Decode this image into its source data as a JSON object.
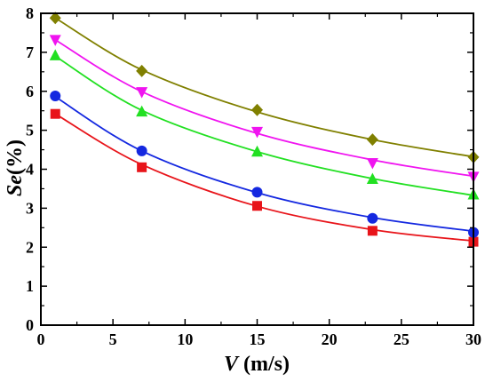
{
  "chart_data": {
    "type": "scatter",
    "title": "",
    "xlabel": {
      "var": "V",
      "unit": " (m/s)"
    },
    "ylabel": {
      "var": "Se",
      "unit": "(%)"
    },
    "xlim": [
      0,
      30
    ],
    "ylim": [
      0,
      8
    ],
    "xticks": [
      0,
      5,
      10,
      15,
      20,
      25,
      30
    ],
    "yticks": [
      0,
      1,
      2,
      3,
      4,
      5,
      6,
      7,
      8
    ],
    "grid": false,
    "x": [
      1,
      7,
      15,
      23,
      30
    ],
    "series": [
      {
        "marker": "square",
        "color": "#e8141a",
        "values": [
          5.42,
          4.05,
          3.06,
          2.42,
          2.14
        ],
        "fit": [
          5.42,
          4.12,
          3.05,
          2.45,
          2.16
        ]
      },
      {
        "marker": "circle",
        "color": "#1428e0",
        "values": [
          5.88,
          4.47,
          3.41,
          2.74,
          2.38
        ],
        "fit": [
          5.86,
          4.47,
          3.4,
          2.76,
          2.41
        ]
      },
      {
        "marker": "triangle-up",
        "color": "#22e022",
        "values": [
          6.92,
          5.48,
          4.45,
          3.75,
          3.35
        ],
        "fit": [
          6.9,
          5.51,
          4.45,
          3.76,
          3.33
        ]
      },
      {
        "marker": "triangle-down",
        "color": "#f014f0",
        "values": [
          7.32,
          5.98,
          4.96,
          4.16,
          3.81
        ],
        "fit": [
          7.32,
          5.99,
          4.92,
          4.24,
          3.82
        ]
      },
      {
        "marker": "diamond",
        "color": "#808000",
        "values": [
          7.88,
          6.52,
          5.52,
          4.76,
          4.31
        ],
        "fit": [
          7.88,
          6.55,
          5.47,
          4.76,
          4.32
        ]
      }
    ]
  }
}
